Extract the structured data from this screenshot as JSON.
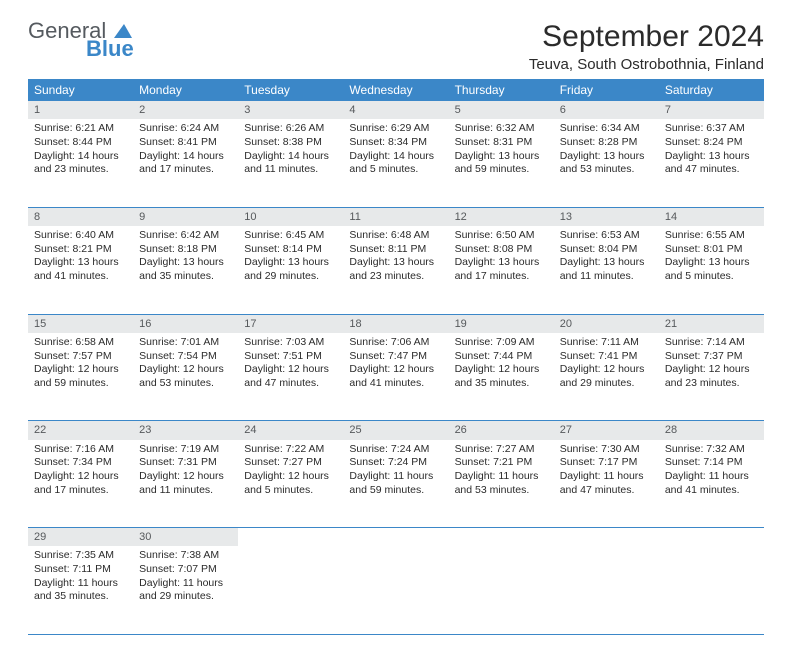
{
  "logo": {
    "textGray": "General",
    "textBlue": "Blue"
  },
  "title": "September 2024",
  "location": "Teuva, South Ostrobothnia, Finland",
  "colors": {
    "header_bg": "#3b87c8",
    "header_text": "#ffffff",
    "daynum_bg": "#e7e9ea",
    "daynum_text": "#56595c",
    "border": "#3b87c8",
    "body_text": "#2b2b2b",
    "logo_gray": "#555a5f",
    "logo_blue": "#3b87c8"
  },
  "weekdays": [
    "Sunday",
    "Monday",
    "Tuesday",
    "Wednesday",
    "Thursday",
    "Friday",
    "Saturday"
  ],
  "weeks": [
    [
      {
        "n": "1",
        "sr": "6:21 AM",
        "ss": "8:44 PM",
        "dl": "14 hours and 23 minutes."
      },
      {
        "n": "2",
        "sr": "6:24 AM",
        "ss": "8:41 PM",
        "dl": "14 hours and 17 minutes."
      },
      {
        "n": "3",
        "sr": "6:26 AM",
        "ss": "8:38 PM",
        "dl": "14 hours and 11 minutes."
      },
      {
        "n": "4",
        "sr": "6:29 AM",
        "ss": "8:34 PM",
        "dl": "14 hours and 5 minutes."
      },
      {
        "n": "5",
        "sr": "6:32 AM",
        "ss": "8:31 PM",
        "dl": "13 hours and 59 minutes."
      },
      {
        "n": "6",
        "sr": "6:34 AM",
        "ss": "8:28 PM",
        "dl": "13 hours and 53 minutes."
      },
      {
        "n": "7",
        "sr": "6:37 AM",
        "ss": "8:24 PM",
        "dl": "13 hours and 47 minutes."
      }
    ],
    [
      {
        "n": "8",
        "sr": "6:40 AM",
        "ss": "8:21 PM",
        "dl": "13 hours and 41 minutes."
      },
      {
        "n": "9",
        "sr": "6:42 AM",
        "ss": "8:18 PM",
        "dl": "13 hours and 35 minutes."
      },
      {
        "n": "10",
        "sr": "6:45 AM",
        "ss": "8:14 PM",
        "dl": "13 hours and 29 minutes."
      },
      {
        "n": "11",
        "sr": "6:48 AM",
        "ss": "8:11 PM",
        "dl": "13 hours and 23 minutes."
      },
      {
        "n": "12",
        "sr": "6:50 AM",
        "ss": "8:08 PM",
        "dl": "13 hours and 17 minutes."
      },
      {
        "n": "13",
        "sr": "6:53 AM",
        "ss": "8:04 PM",
        "dl": "13 hours and 11 minutes."
      },
      {
        "n": "14",
        "sr": "6:55 AM",
        "ss": "8:01 PM",
        "dl": "13 hours and 5 minutes."
      }
    ],
    [
      {
        "n": "15",
        "sr": "6:58 AM",
        "ss": "7:57 PM",
        "dl": "12 hours and 59 minutes."
      },
      {
        "n": "16",
        "sr": "7:01 AM",
        "ss": "7:54 PM",
        "dl": "12 hours and 53 minutes."
      },
      {
        "n": "17",
        "sr": "7:03 AM",
        "ss": "7:51 PM",
        "dl": "12 hours and 47 minutes."
      },
      {
        "n": "18",
        "sr": "7:06 AM",
        "ss": "7:47 PM",
        "dl": "12 hours and 41 minutes."
      },
      {
        "n": "19",
        "sr": "7:09 AM",
        "ss": "7:44 PM",
        "dl": "12 hours and 35 minutes."
      },
      {
        "n": "20",
        "sr": "7:11 AM",
        "ss": "7:41 PM",
        "dl": "12 hours and 29 minutes."
      },
      {
        "n": "21",
        "sr": "7:14 AM",
        "ss": "7:37 PM",
        "dl": "12 hours and 23 minutes."
      }
    ],
    [
      {
        "n": "22",
        "sr": "7:16 AM",
        "ss": "7:34 PM",
        "dl": "12 hours and 17 minutes."
      },
      {
        "n": "23",
        "sr": "7:19 AM",
        "ss": "7:31 PM",
        "dl": "12 hours and 11 minutes."
      },
      {
        "n": "24",
        "sr": "7:22 AM",
        "ss": "7:27 PM",
        "dl": "12 hours and 5 minutes."
      },
      {
        "n": "25",
        "sr": "7:24 AM",
        "ss": "7:24 PM",
        "dl": "11 hours and 59 minutes."
      },
      {
        "n": "26",
        "sr": "7:27 AM",
        "ss": "7:21 PM",
        "dl": "11 hours and 53 minutes."
      },
      {
        "n": "27",
        "sr": "7:30 AM",
        "ss": "7:17 PM",
        "dl": "11 hours and 47 minutes."
      },
      {
        "n": "28",
        "sr": "7:32 AM",
        "ss": "7:14 PM",
        "dl": "11 hours and 41 minutes."
      }
    ],
    [
      {
        "n": "29",
        "sr": "7:35 AM",
        "ss": "7:11 PM",
        "dl": "11 hours and 35 minutes."
      },
      {
        "n": "30",
        "sr": "7:38 AM",
        "ss": "7:07 PM",
        "dl": "11 hours and 29 minutes."
      },
      null,
      null,
      null,
      null,
      null
    ]
  ],
  "labels": {
    "sunrise": "Sunrise:",
    "sunset": "Sunset:",
    "daylight": "Daylight:"
  }
}
